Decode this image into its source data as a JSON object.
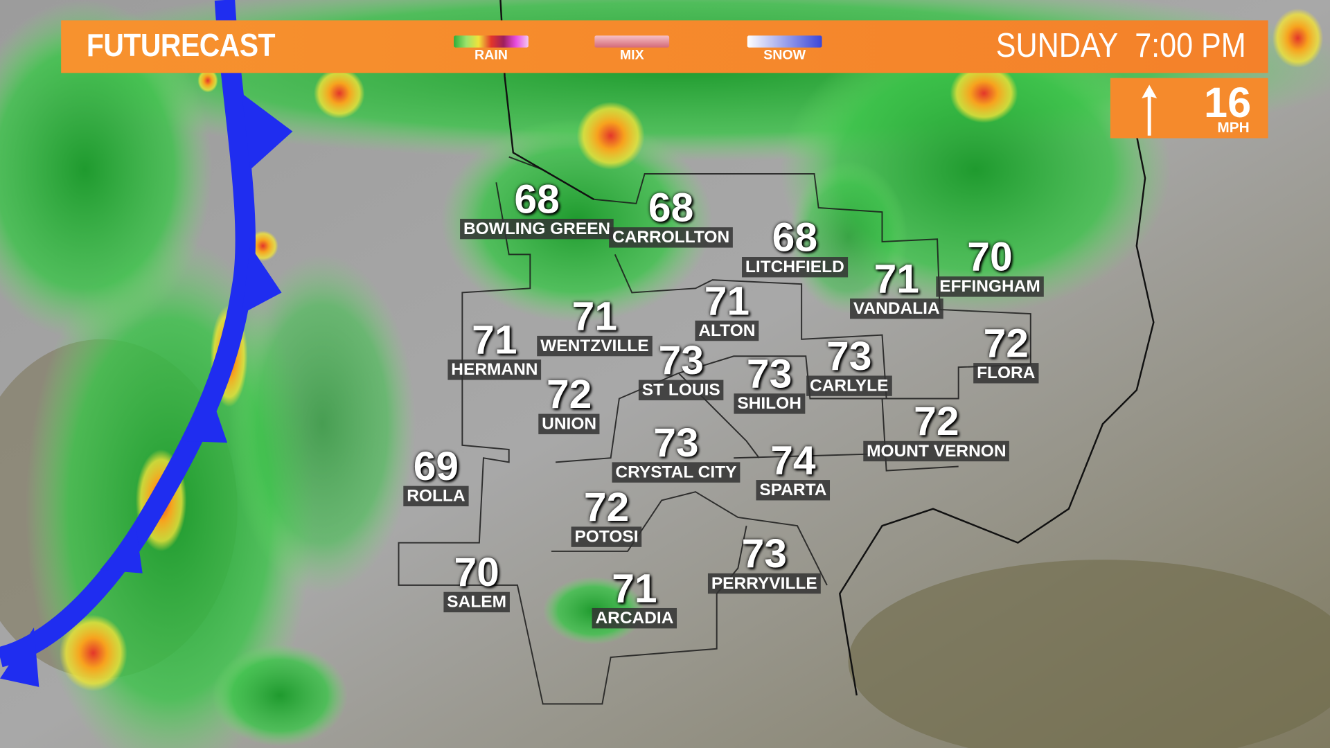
{
  "header": {
    "title": "FUTURECAST",
    "day": "SUNDAY",
    "time": "7:00 PM"
  },
  "legend": [
    {
      "label": "RAIN",
      "colors": [
        "#2fae3a",
        "#9be36b",
        "#f1e33a",
        "#e3362a",
        "#9e1f5c",
        "#e84de0"
      ]
    },
    {
      "label": "MIX",
      "colors": [
        "#f0a0a6",
        "#d46a78"
      ]
    },
    {
      "label": "SNOW",
      "colors": [
        "#ffffff",
        "#3a46d8"
      ]
    }
  ],
  "wind": {
    "speed": "16",
    "unit": "MPH",
    "direction": "north",
    "icon": "arrow-up-icon"
  },
  "colors": {
    "banner": "#f7892d",
    "front": "#1f2df0"
  },
  "cities": [
    {
      "name": "BOWLING GREEN",
      "temp": "68"
    },
    {
      "name": "CARROLLTON",
      "temp": "68"
    },
    {
      "name": "LITCHFIELD",
      "temp": "68"
    },
    {
      "name": "VANDALIA",
      "temp": "71"
    },
    {
      "name": "EFFINGHAM",
      "temp": "70"
    },
    {
      "name": "ALTON",
      "temp": "71"
    },
    {
      "name": "WENTZVILLE",
      "temp": "71"
    },
    {
      "name": "HERMANN",
      "temp": "71"
    },
    {
      "name": "ST LOUIS",
      "temp": "73"
    },
    {
      "name": "SHILOH",
      "temp": "73"
    },
    {
      "name": "CARLYLE",
      "temp": "73"
    },
    {
      "name": "FLORA",
      "temp": "72"
    },
    {
      "name": "UNION",
      "temp": "72"
    },
    {
      "name": "MOUNT VERNON",
      "temp": "72"
    },
    {
      "name": "CRYSTAL CITY",
      "temp": "73"
    },
    {
      "name": "SPARTA",
      "temp": "74"
    },
    {
      "name": "ROLLA",
      "temp": "69"
    },
    {
      "name": "POTOSI",
      "temp": "72"
    },
    {
      "name": "PERRYVILLE",
      "temp": "73"
    },
    {
      "name": "SALEM",
      "temp": "70"
    },
    {
      "name": "ARCADIA",
      "temp": "71"
    }
  ]
}
